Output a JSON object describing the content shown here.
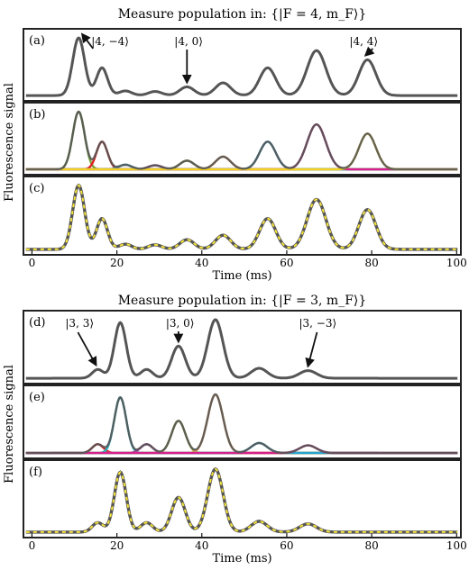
{
  "chart_data": [
    {
      "type": "line",
      "title": "Measure population in:  {|F = 4, m_F⟩}",
      "xlabel": "Time (ms)",
      "ylabel": "Fluorescence signal",
      "xlim": [
        -2,
        101
      ],
      "xticks": [
        0,
        20,
        40,
        60,
        80,
        100
      ],
      "tick_labels": [
        "0",
        "20",
        "40",
        "60",
        "80",
        "100"
      ],
      "grid": false,
      "panels": [
        {
          "label": "(a)",
          "annotations": [
            {
              "text": "|4, −4⟩",
              "x": 11
            },
            {
              "text": "|4, 0⟩",
              "x": 36.5
            },
            {
              "text": "|4, 4⟩",
              "x": 79
            }
          ]
        },
        {
          "label": "(b)"
        },
        {
          "label": "(c)"
        }
      ],
      "baseline": 0.03,
      "peaks": [
        {
          "x": 11,
          "height": 1.0,
          "width": 1.4,
          "color": "#78a83a"
        },
        {
          "x": 16.5,
          "height": 0.48,
          "width": 1.3,
          "color": "#e02020"
        },
        {
          "x": 22,
          "height": 0.08,
          "width": 1.5,
          "color": "#25a5cf"
        },
        {
          "x": 29,
          "height": 0.07,
          "width": 1.6,
          "color": "#a0309a"
        },
        {
          "x": 36.5,
          "height": 0.15,
          "width": 1.7,
          "color": "#8a9a30"
        },
        {
          "x": 45,
          "height": 0.22,
          "width": 1.8,
          "color": "#e39040"
        },
        {
          "x": 55.5,
          "height": 0.48,
          "width": 1.9,
          "color": "#25a5cf"
        },
        {
          "x": 67,
          "height": 0.78,
          "width": 2.2,
          "color": "#d6208c"
        },
        {
          "x": 79,
          "height": 0.62,
          "width": 2.0,
          "color": "#f0d020"
        }
      ]
    },
    {
      "type": "line",
      "title": "Measure population in:  {|F = 3, m_F⟩}",
      "xlabel": "Time (ms)",
      "ylabel": "Fluorescence signal",
      "xlim": [
        -2,
        101
      ],
      "xticks": [
        0,
        20,
        40,
        60,
        80,
        100
      ],
      "tick_labels": [
        "0",
        "20",
        "40",
        "60",
        "80",
        "100"
      ],
      "grid": false,
      "panels": [
        {
          "label": "(d)",
          "annotations": [
            {
              "text": "|3, 3⟩",
              "x": 15.5
            },
            {
              "text": "|3, 0⟩",
              "x": 34.5
            },
            {
              "text": "|3, −3⟩",
              "x": 65
            }
          ]
        },
        {
          "label": "(e)"
        },
        {
          "label": "(f)"
        }
      ],
      "baseline": 0.03,
      "peaks": [
        {
          "x": 15.5,
          "height": 0.15,
          "width": 1.3,
          "color": "#e02020"
        },
        {
          "x": 20.8,
          "height": 0.95,
          "width": 1.4,
          "color": "#25b0c0"
        },
        {
          "x": 27,
          "height": 0.15,
          "width": 1.4,
          "color": "#a0309a"
        },
        {
          "x": 34.5,
          "height": 0.55,
          "width": 1.6,
          "color": "#a0b030"
        },
        {
          "x": 43.2,
          "height": 1.0,
          "width": 1.8,
          "color": "#f0a050"
        },
        {
          "x": 53.5,
          "height": 0.17,
          "width": 1.9,
          "color": "#25a5cf"
        },
        {
          "x": 65,
          "height": 0.13,
          "width": 2.0,
          "color": "#d6208c"
        }
      ]
    }
  ]
}
